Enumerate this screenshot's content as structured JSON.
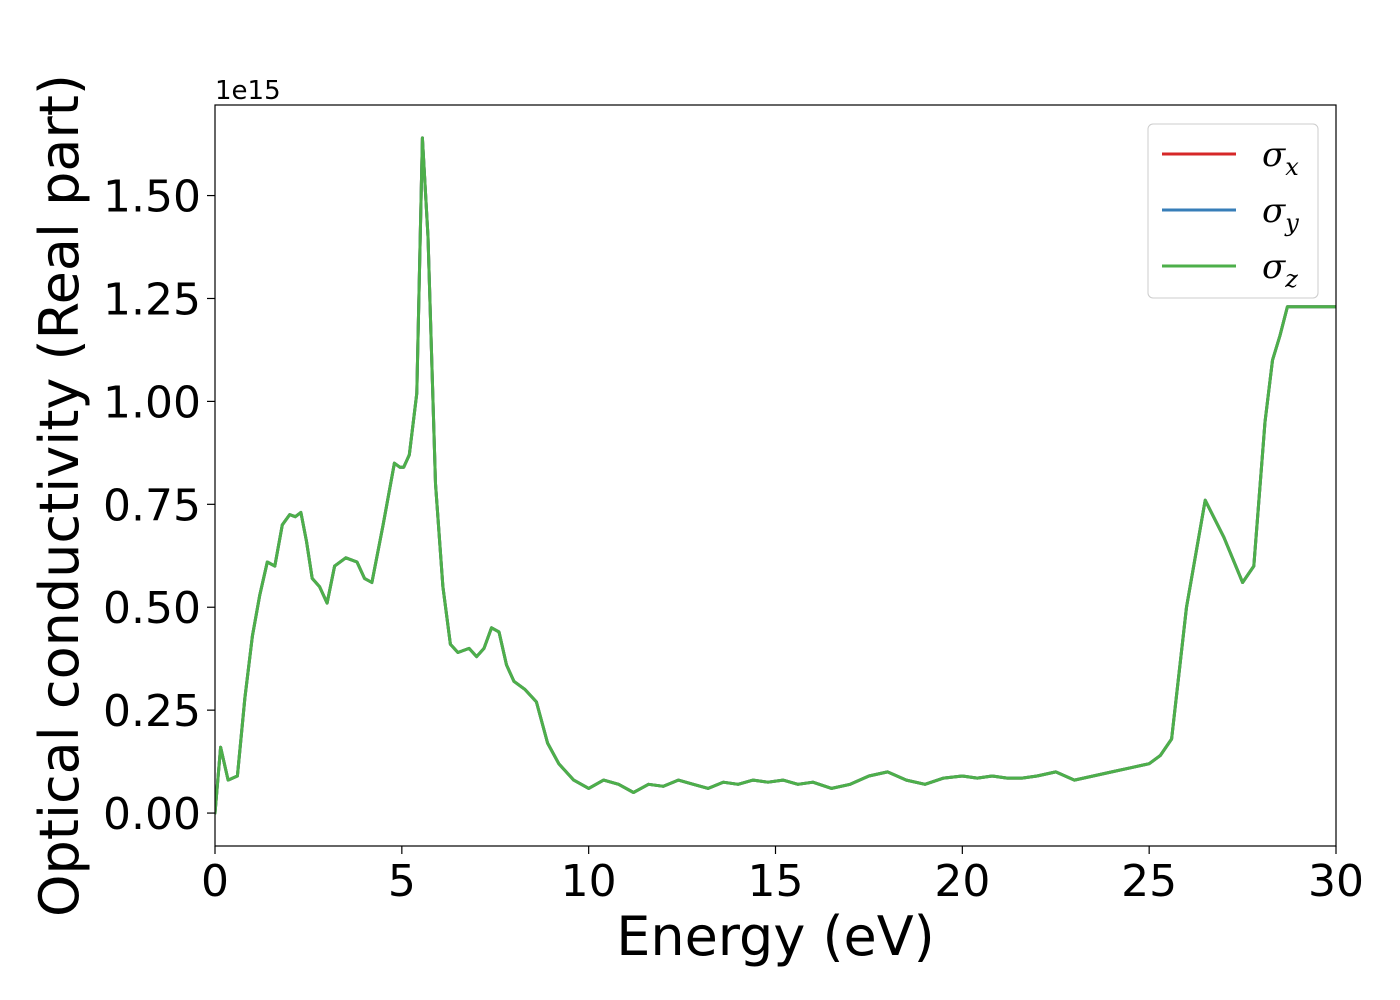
{
  "chart_data": {
    "type": "line",
    "xlabel": "Energy (eV)",
    "ylabel": "Optical conductivity (Real part)",
    "y_offset_text": "1e15",
    "y_multiplier": 1000000000000000.0,
    "xlim": [
      0,
      30
    ],
    "ylim": [
      -0.08,
      1.72
    ],
    "x_ticks": [
      0,
      5,
      10,
      15,
      20,
      25,
      30
    ],
    "x_tick_labels": [
      "0",
      "5",
      "10",
      "15",
      "20",
      "25",
      "30"
    ],
    "y_ticks": [
      0,
      0.25,
      0.5,
      0.75,
      1.0,
      1.25,
      1.5
    ],
    "y_tick_labels": [
      "0.00",
      "0.25",
      "0.50",
      "0.75",
      "1.00",
      "1.25",
      "1.50"
    ],
    "grid": false,
    "legend_position": "top-right",
    "x": [
      0,
      0.15,
      0.35,
      0.6,
      0.8,
      1.0,
      1.2,
      1.4,
      1.6,
      1.8,
      2.0,
      2.15,
      2.3,
      2.45,
      2.6,
      2.8,
      3.0,
      3.2,
      3.5,
      3.8,
      4.0,
      4.2,
      4.5,
      4.8,
      4.95,
      5.05,
      5.2,
      5.4,
      5.55,
      5.7,
      5.9,
      6.1,
      6.3,
      6.5,
      6.8,
      7.0,
      7.2,
      7.4,
      7.6,
      7.8,
      8.0,
      8.3,
      8.6,
      8.9,
      9.2,
      9.6,
      10.0,
      10.4,
      10.8,
      11.2,
      11.6,
      12.0,
      12.4,
      12.8,
      13.2,
      13.6,
      14.0,
      14.4,
      14.8,
      15.2,
      15.6,
      16.0,
      16.5,
      17.0,
      17.5,
      18.0,
      18.5,
      19.0,
      19.5,
      20.0,
      20.4,
      20.8,
      21.2,
      21.6,
      22.0,
      22.5,
      23.0,
      23.5,
      24.0,
      24.5,
      25.0,
      25.3,
      25.6,
      26.0,
      26.5,
      27.0,
      27.5,
      27.8,
      28.1,
      28.3,
      28.5,
      28.7,
      28.85,
      29.0,
      29.1,
      29.3,
      29.5,
      29.7,
      29.9,
      30.0
    ],
    "series": [
      {
        "name": "σ_x",
        "color": "#d62728",
        "values": [
          0.0,
          0.16,
          0.08,
          0.09,
          0.28,
          0.43,
          0.53,
          0.61,
          0.6,
          0.7,
          0.725,
          0.72,
          0.73,
          0.66,
          0.57,
          0.55,
          0.51,
          0.6,
          0.62,
          0.61,
          0.57,
          0.56,
          0.7,
          0.85,
          0.84,
          0.84,
          0.87,
          1.02,
          1.64,
          1.4,
          0.8,
          0.55,
          0.41,
          0.39,
          0.4,
          0.38,
          0.4,
          0.45,
          0.44,
          0.36,
          0.32,
          0.3,
          0.27,
          0.17,
          0.12,
          0.08,
          0.06,
          0.08,
          0.07,
          0.05,
          0.07,
          0.065,
          0.08,
          0.07,
          0.06,
          0.075,
          0.07,
          0.08,
          0.075,
          0.08,
          0.07,
          0.075,
          0.06,
          0.07,
          0.09,
          0.1,
          0.08,
          0.07,
          0.085,
          0.09,
          0.085,
          0.09,
          0.085,
          0.085,
          0.09,
          0.1,
          0.08,
          0.09,
          0.1,
          0.11,
          0.12,
          0.14,
          0.18,
          0.5,
          0.76,
          0.67,
          0.56,
          0.6,
          0.95,
          1.1,
          1.16,
          1.23,
          1.23,
          1.23,
          1.23,
          1.23,
          1.23,
          1.23,
          1.23,
          1.23
        ]
      },
      {
        "name": "σ_y",
        "color": "#377eb8",
        "values": [
          0.0,
          0.16,
          0.08,
          0.09,
          0.28,
          0.43,
          0.53,
          0.61,
          0.6,
          0.7,
          0.725,
          0.72,
          0.73,
          0.66,
          0.57,
          0.55,
          0.51,
          0.6,
          0.62,
          0.61,
          0.57,
          0.56,
          0.7,
          0.85,
          0.84,
          0.84,
          0.87,
          1.02,
          1.64,
          1.4,
          0.8,
          0.55,
          0.41,
          0.39,
          0.4,
          0.38,
          0.4,
          0.45,
          0.44,
          0.36,
          0.32,
          0.3,
          0.27,
          0.17,
          0.12,
          0.08,
          0.06,
          0.08,
          0.07,
          0.05,
          0.07,
          0.065,
          0.08,
          0.07,
          0.06,
          0.075,
          0.07,
          0.08,
          0.075,
          0.08,
          0.07,
          0.075,
          0.06,
          0.07,
          0.09,
          0.1,
          0.08,
          0.07,
          0.085,
          0.09,
          0.085,
          0.09,
          0.085,
          0.085,
          0.09,
          0.1,
          0.08,
          0.09,
          0.1,
          0.11,
          0.12,
          0.14,
          0.18,
          0.5,
          0.76,
          0.67,
          0.56,
          0.6,
          0.95,
          1.1,
          1.16,
          1.23,
          1.23,
          1.23,
          1.23,
          1.23,
          1.23,
          1.23,
          1.23,
          1.23
        ]
      },
      {
        "name": "σ_z",
        "color": "#4daf4a",
        "values": [
          0.0,
          0.16,
          0.08,
          0.09,
          0.28,
          0.43,
          0.53,
          0.61,
          0.6,
          0.7,
          0.725,
          0.72,
          0.73,
          0.66,
          0.57,
          0.55,
          0.51,
          0.6,
          0.62,
          0.61,
          0.57,
          0.56,
          0.7,
          0.85,
          0.84,
          0.84,
          0.87,
          1.02,
          1.64,
          1.4,
          0.8,
          0.55,
          0.41,
          0.39,
          0.4,
          0.38,
          0.4,
          0.45,
          0.44,
          0.36,
          0.32,
          0.3,
          0.27,
          0.17,
          0.12,
          0.08,
          0.06,
          0.08,
          0.07,
          0.05,
          0.07,
          0.065,
          0.08,
          0.07,
          0.06,
          0.075,
          0.07,
          0.08,
          0.075,
          0.08,
          0.07,
          0.075,
          0.06,
          0.07,
          0.09,
          0.1,
          0.08,
          0.07,
          0.085,
          0.09,
          0.085,
          0.09,
          0.085,
          0.085,
          0.09,
          0.1,
          0.08,
          0.09,
          0.1,
          0.11,
          0.12,
          0.14,
          0.18,
          0.5,
          0.76,
          0.67,
          0.56,
          0.6,
          0.95,
          1.1,
          1.16,
          1.23,
          1.23,
          1.23,
          1.23,
          1.23,
          1.23,
          1.23,
          1.23,
          1.23
        ]
      }
    ],
    "legend": [
      {
        "symbol": "σ",
        "sub": "x",
        "color": "#d62728"
      },
      {
        "symbol": "σ",
        "sub": "y",
        "color": "#377eb8"
      },
      {
        "symbol": "σ",
        "sub": "z",
        "color": "#4daf4a"
      }
    ]
  }
}
